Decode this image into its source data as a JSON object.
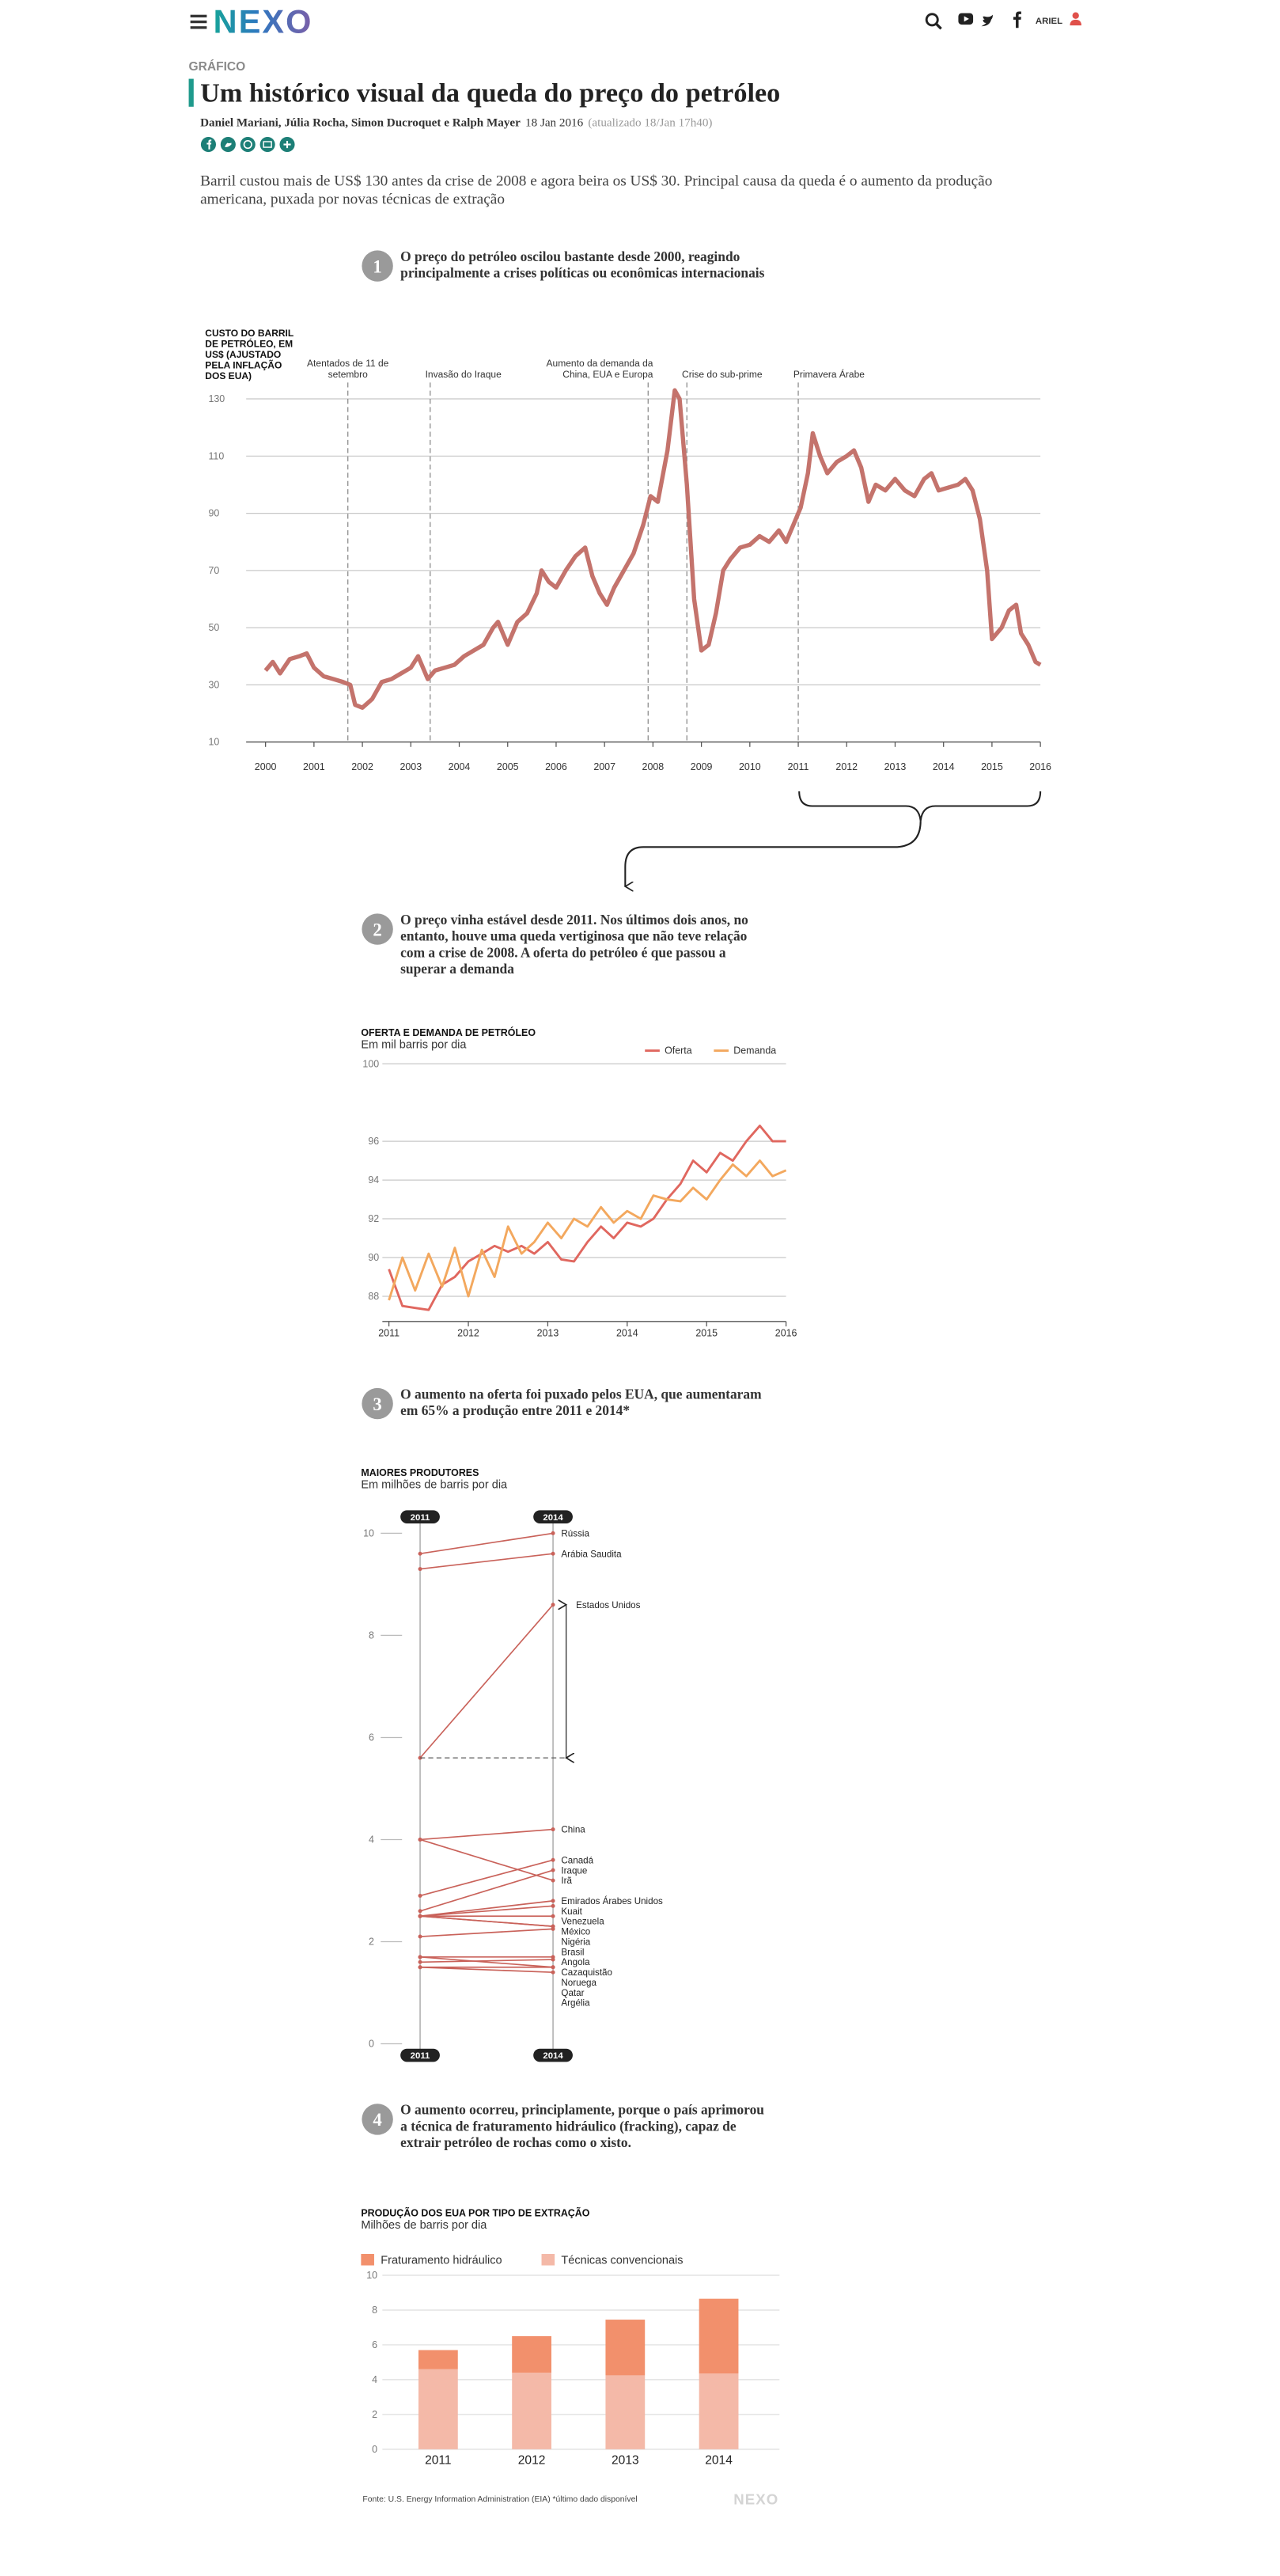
{
  "header": {
    "logo": "NEXO",
    "user": "ARIEL"
  },
  "article": {
    "kicker": "GRÁFICO",
    "title": "Um histórico visual da queda do preço do petróleo",
    "authors": "Daniel Mariani, Júlia Rocha, Simon Ducroquet e Ralph Mayer",
    "date": "18 Jan 2016",
    "updated": "(atualizado 18/Jan 17h40)",
    "lede": "Barril custou mais de US$ 130 antes da crise de 2008 e agora beira os US$ 30. Principal causa da queda é o aumento da produção americana, puxada por novas técnicas de extração"
  },
  "steps": [
    {
      "number": 1,
      "text": "O preço do petróleo oscilou bastante desde 2000, reagindo principalmente a crises políticas ou econômicas internacionais"
    },
    {
      "number": 2,
      "text": "O preço vinha estável desde 2011. Nos últimos dois anos, no entanto, houve uma queda vertiginosa que não teve relação com a crise de 2008. A oferta do petróleo é que passou a superar a demanda"
    },
    {
      "number": 3,
      "text": "O aumento na oferta foi puxado pelos EUA, que aumentaram em 65% a produção entre 2011 e 2014*"
    },
    {
      "number": 4,
      "text": "O aumento ocorreu, principlamente, porque o país aprimorou a técnica de fraturamento hidráulico (fracking), capaz de extrair petróleo de rochas como o xisto."
    }
  ],
  "chart_data": [
    {
      "type": "line",
      "title": "CUSTO DO BARRIL DE PETRÓLEO, EM US$ (AJUSTADO PELA INFLAÇÃO DOS EUA)",
      "x": [
        2000.0,
        2000.15,
        2000.3,
        2000.5,
        2000.7,
        2000.85,
        2001.0,
        2001.2,
        2001.4,
        2001.6,
        2001.75,
        2001.85,
        2002.0,
        2002.2,
        2002.4,
        2002.6,
        2002.8,
        2003.0,
        2003.15,
        2003.35,
        2003.5,
        2003.7,
        2003.9,
        2004.1,
        2004.3,
        2004.5,
        2004.7,
        2004.8,
        2005.0,
        2005.2,
        2005.4,
        2005.6,
        2005.7,
        2005.85,
        2006.0,
        2006.2,
        2006.4,
        2006.6,
        2006.75,
        2006.9,
        2007.05,
        2007.2,
        2007.4,
        2007.6,
        2007.8,
        2007.95,
        2008.1,
        2008.3,
        2008.45,
        2008.55,
        2008.7,
        2008.85,
        2009.0,
        2009.15,
        2009.3,
        2009.45,
        2009.6,
        2009.8,
        2010.0,
        2010.2,
        2010.4,
        2010.6,
        2010.75,
        2010.9,
        2011.05,
        2011.2,
        2011.3,
        2011.45,
        2011.6,
        2011.8,
        2012.0,
        2012.15,
        2012.3,
        2012.45,
        2012.6,
        2012.8,
        2013.0,
        2013.2,
        2013.4,
        2013.6,
        2013.75,
        2013.9,
        2014.1,
        2014.3,
        2014.45,
        2014.6,
        2014.75,
        2014.9,
        2015.0,
        2015.2,
        2015.35,
        2015.5,
        2015.6,
        2015.75,
        2015.9,
        2016.0
      ],
      "series": [
        {
          "color": "#c4736c",
          "values": [
            35,
            38,
            34,
            39,
            40,
            41,
            36,
            33,
            32,
            31,
            30,
            23,
            22,
            25,
            31,
            32,
            34,
            36,
            40,
            32,
            35,
            36,
            37,
            40,
            42,
            44,
            50,
            52,
            44,
            52,
            55,
            62,
            70,
            66,
            64,
            70,
            75,
            78,
            68,
            62,
            58,
            64,
            70,
            76,
            86,
            96,
            94,
            112,
            133,
            130,
            100,
            60,
            42,
            44,
            55,
            70,
            74,
            78,
            79,
            82,
            80,
            84,
            80,
            86,
            92,
            104,
            118,
            110,
            104,
            108,
            110,
            112,
            106,
            94,
            100,
            98,
            102,
            98,
            96,
            102,
            104,
            98,
            99,
            100,
            102,
            98,
            88,
            70,
            46,
            50,
            56,
            58,
            48,
            44,
            38,
            37
          ]
        }
      ],
      "xlim": [
        1999.6,
        2016
      ],
      "xticks": [
        2000,
        2001,
        2002,
        2003,
        2004,
        2005,
        2006,
        2007,
        2008,
        2009,
        2010,
        2011,
        2012,
        2013,
        2014,
        2015,
        2016
      ],
      "ylim": [
        10,
        130
      ],
      "yticks": [
        10,
        30,
        50,
        70,
        90,
        110,
        130
      ],
      "grid": true,
      "annotations": [
        {
          "x": 2001.7,
          "text": "Atentados de 11 de setembro"
        },
        {
          "x": 2003.4,
          "text": "Invasão do Iraque"
        },
        {
          "x": 2007.9,
          "text": "Aumento da demanda da China, EUA e Europa"
        },
        {
          "x": 2008.7,
          "text": "Crise do sub-prime"
        },
        {
          "x": 2011.0,
          "text": "Primavera Árabe"
        }
      ]
    },
    {
      "type": "line",
      "title": "OFERTA E DEMANDA DE PETRÓLEO",
      "subtitle": "Em mil barris por dia",
      "x": [
        2011,
        2011.17,
        2011.33,
        2011.5,
        2011.67,
        2011.83,
        2012,
        2012.17,
        2012.33,
        2012.5,
        2012.67,
        2012.83,
        2013,
        2013.17,
        2013.33,
        2013.5,
        2013.67,
        2013.83,
        2014,
        2014.17,
        2014.33,
        2014.5,
        2014.67,
        2014.83,
        2015,
        2015.17,
        2015.33,
        2015.5,
        2015.67,
        2015.83,
        2016
      ],
      "series": [
        {
          "name": "Oferta",
          "color": "#e0675f",
          "values": [
            89.4,
            87.5,
            87.4,
            87.3,
            88.6,
            89.0,
            89.8,
            90.2,
            90.6,
            90.3,
            90.6,
            90.2,
            90.8,
            89.9,
            89.8,
            90.8,
            91.6,
            91.0,
            91.8,
            91.6,
            92.0,
            93.0,
            93.8,
            95.0,
            94.4,
            95.4,
            95.0,
            96.0,
            96.8,
            96.0,
            96.0
          ]
        },
        {
          "name": "Demanda",
          "color": "#f3a85e",
          "values": [
            87.8,
            90.0,
            88.3,
            90.2,
            88.5,
            90.5,
            88.0,
            90.4,
            89.0,
            91.6,
            90.2,
            90.8,
            91.8,
            91.0,
            92.0,
            91.6,
            92.6,
            91.8,
            92.4,
            92.0,
            93.2,
            93.0,
            92.9,
            93.6,
            93.0,
            94.0,
            94.8,
            94.2,
            95.0,
            94.2,
            94.5
          ]
        }
      ],
      "xlim": [
        2011,
        2016
      ],
      "xticks": [
        2011,
        2012,
        2013,
        2014,
        2015,
        2016
      ],
      "ylim": [
        86.7,
        100
      ],
      "yticks": [
        88,
        90,
        92,
        94,
        96,
        100
      ],
      "grid": true,
      "legend": "top-right"
    },
    {
      "type": "slope",
      "title": "MAIORES PRODUTORES",
      "subtitle": "Em milhões de barris por dia",
      "categories": [
        "2011",
        "2014"
      ],
      "color": "#c9625a",
      "ylim": [
        0,
        10
      ],
      "yticks": [
        0,
        2,
        4,
        6,
        8,
        10
      ],
      "series": [
        {
          "name": "Rússia",
          "values": [
            9.6,
            10.0
          ]
        },
        {
          "name": "Arábia Saudita",
          "values": [
            9.3,
            9.6
          ]
        },
        {
          "name": "Estados Unidos",
          "values": [
            5.6,
            8.6
          ]
        },
        {
          "name": "China",
          "values": [
            4.0,
            4.2
          ]
        },
        {
          "name": "Canadá",
          "values": [
            2.9,
            3.6
          ]
        },
        {
          "name": "Iraque",
          "values": [
            2.6,
            3.4
          ]
        },
        {
          "name": "Irã",
          "values": [
            4.0,
            3.2
          ]
        },
        {
          "name": "Emirados Árabes Unidos",
          "values": [
            2.5,
            2.8
          ]
        },
        {
          "name": "Kuait",
          "values": [
            2.5,
            2.7
          ]
        },
        {
          "name": "Venezuela",
          "values": [
            2.5,
            2.5
          ]
        },
        {
          "name": "México",
          "values": [
            2.5,
            2.3
          ]
        },
        {
          "name": "Nigéria",
          "values": [
            2.5,
            2.3
          ]
        },
        {
          "name": "Brasil",
          "values": [
            2.1,
            2.25
          ]
        },
        {
          "name": "Angola",
          "values": [
            1.7,
            1.7
          ]
        },
        {
          "name": "Cazaquistão",
          "values": [
            1.6,
            1.65
          ]
        },
        {
          "name": "Noruega",
          "values": [
            1.7,
            1.5
          ]
        },
        {
          "name": "Qatar",
          "values": [
            1.5,
            1.5
          ]
        },
        {
          "name": "Argélia",
          "values": [
            1.5,
            1.4
          ]
        }
      ]
    },
    {
      "type": "stacked-bar",
      "title": "PRODUÇÃO DOS EUA POR TIPO DE EXTRAÇÃO",
      "subtitle": "Milhões de barris por dia",
      "categories": [
        "2011",
        "2012",
        "2013",
        "2014"
      ],
      "series": [
        {
          "name": "Fraturamento hidráulico",
          "color": "#f2906c",
          "values": [
            1.1,
            2.1,
            3.2,
            4.3
          ]
        },
        {
          "name": "Técnicas convencionais",
          "color": "#f4b9a8",
          "values": [
            4.6,
            4.4,
            4.25,
            4.35
          ]
        }
      ],
      "ylim": [
        0,
        10
      ],
      "yticks": [
        0,
        2,
        4,
        6,
        8,
        10
      ],
      "grid": true,
      "legend": "top-left"
    }
  ],
  "footer": {
    "source": "Fonte: U.S. Energy Information Administration (EIA) *último dado disponível",
    "logo": "NEXO"
  }
}
